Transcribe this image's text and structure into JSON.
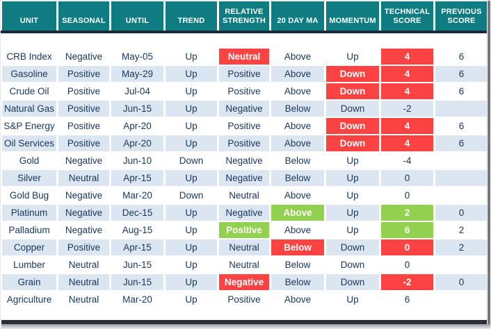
{
  "colors": {
    "header_bg": "#0e7c80",
    "stripe": "#dce6f1",
    "red": "#fb4343",
    "green": "#92d050",
    "text": "#17365d",
    "header_text": "#ffffff",
    "divider": "#1c2b3a",
    "frame_dark": "#2c2e37"
  },
  "table": {
    "columns": [
      "UNIT",
      "SEASONAL",
      "UNTIL",
      "TREND",
      "RELATIVE STRENGTH",
      "20 DAY MA",
      "MOMENTUM",
      "TECHNICAL SCORE",
      "PREVIOUS SCORE"
    ],
    "rows": [
      {
        "cells": [
          {
            "t": "CRB Index"
          },
          {
            "t": "Negative"
          },
          {
            "t": "May-05"
          },
          {
            "t": "Up"
          },
          {
            "t": "Neutral",
            "h": "red"
          },
          {
            "t": "Above"
          },
          {
            "t": "Up"
          },
          {
            "t": "4",
            "h": "red"
          },
          {
            "t": "6"
          }
        ]
      },
      {
        "cells": [
          {
            "t": "Gasoline"
          },
          {
            "t": "Positive"
          },
          {
            "t": "May-29"
          },
          {
            "t": "Up"
          },
          {
            "t": "Positive"
          },
          {
            "t": "Above"
          },
          {
            "t": "Down",
            "h": "red"
          },
          {
            "t": "4",
            "h": "red"
          },
          {
            "t": "6"
          }
        ]
      },
      {
        "cells": [
          {
            "t": "Crude Oil"
          },
          {
            "t": "Positive"
          },
          {
            "t": "Jul-04"
          },
          {
            "t": "Up"
          },
          {
            "t": "Positive"
          },
          {
            "t": "Above"
          },
          {
            "t": "Down",
            "h": "red"
          },
          {
            "t": "4",
            "h": "red"
          },
          {
            "t": "6"
          }
        ]
      },
      {
        "cells": [
          {
            "t": "Natural Gas"
          },
          {
            "t": "Positive"
          },
          {
            "t": "Jun-15"
          },
          {
            "t": "Up"
          },
          {
            "t": "Negative"
          },
          {
            "t": "Below"
          },
          {
            "t": "Down"
          },
          {
            "t": "-2"
          },
          {
            "t": ""
          }
        ]
      },
      {
        "cells": [
          {
            "t": "S&P Energy"
          },
          {
            "t": "Positive"
          },
          {
            "t": "Apr-20"
          },
          {
            "t": "Up"
          },
          {
            "t": "Positive"
          },
          {
            "t": "Above"
          },
          {
            "t": "Down",
            "h": "red"
          },
          {
            "t": "4",
            "h": "red"
          },
          {
            "t": "6"
          }
        ]
      },
      {
        "cells": [
          {
            "t": "Oil Services"
          },
          {
            "t": "Positive"
          },
          {
            "t": "Apr-20"
          },
          {
            "t": "Up"
          },
          {
            "t": "Positive"
          },
          {
            "t": "Above"
          },
          {
            "t": "Down",
            "h": "red"
          },
          {
            "t": "4",
            "h": "red"
          },
          {
            "t": "6"
          }
        ]
      },
      {
        "cells": [
          {
            "t": "Gold"
          },
          {
            "t": "Negative"
          },
          {
            "t": "Jun-10"
          },
          {
            "t": "Down"
          },
          {
            "t": "Negative"
          },
          {
            "t": "Below"
          },
          {
            "t": "Up"
          },
          {
            "t": "-4"
          },
          {
            "t": ""
          }
        ]
      },
      {
        "cells": [
          {
            "t": "Silver"
          },
          {
            "t": "Neutral"
          },
          {
            "t": "Apr-15"
          },
          {
            "t": "Up"
          },
          {
            "t": "Negative"
          },
          {
            "t": "Below"
          },
          {
            "t": "Up"
          },
          {
            "t": "0"
          },
          {
            "t": ""
          }
        ]
      },
      {
        "cells": [
          {
            "t": "Gold Bug"
          },
          {
            "t": "Negative"
          },
          {
            "t": "Mar-20"
          },
          {
            "t": "Down"
          },
          {
            "t": "Neutral"
          },
          {
            "t": "Above"
          },
          {
            "t": "Up"
          },
          {
            "t": "0"
          },
          {
            "t": ""
          }
        ]
      },
      {
        "cells": [
          {
            "t": "Platinum"
          },
          {
            "t": "Negative"
          },
          {
            "t": "Dec-15"
          },
          {
            "t": "Up"
          },
          {
            "t": "Negative"
          },
          {
            "t": "Above",
            "h": "green"
          },
          {
            "t": "Up"
          },
          {
            "t": "2",
            "h": "green"
          },
          {
            "t": "0"
          }
        ]
      },
      {
        "cells": [
          {
            "t": "Palladium"
          },
          {
            "t": "Negative"
          },
          {
            "t": "Aug-15"
          },
          {
            "t": "Up"
          },
          {
            "t": "Positive",
            "h": "green"
          },
          {
            "t": "Above"
          },
          {
            "t": "Up"
          },
          {
            "t": "6",
            "h": "green"
          },
          {
            "t": "2"
          }
        ]
      },
      {
        "cells": [
          {
            "t": "Copper"
          },
          {
            "t": "Positive"
          },
          {
            "t": "Apr-15"
          },
          {
            "t": "Up"
          },
          {
            "t": "Neutral"
          },
          {
            "t": "Below",
            "h": "red"
          },
          {
            "t": "Down"
          },
          {
            "t": "0",
            "h": "red"
          },
          {
            "t": "2"
          }
        ]
      },
      {
        "cells": [
          {
            "t": "Lumber"
          },
          {
            "t": "Neutral"
          },
          {
            "t": "Jun-15"
          },
          {
            "t": "Up"
          },
          {
            "t": "Neutral"
          },
          {
            "t": "Below"
          },
          {
            "t": "Down"
          },
          {
            "t": "0"
          },
          {
            "t": ""
          }
        ]
      },
      {
        "cells": [
          {
            "t": "Grain"
          },
          {
            "t": "Neutral"
          },
          {
            "t": "Jun-15"
          },
          {
            "t": "Up"
          },
          {
            "t": "Negative",
            "h": "red"
          },
          {
            "t": "Below"
          },
          {
            "t": "Down"
          },
          {
            "t": "-2",
            "h": "red"
          },
          {
            "t": "0"
          }
        ]
      },
      {
        "cells": [
          {
            "t": "Agriculture"
          },
          {
            "t": "Neutral"
          },
          {
            "t": "Mar-20"
          },
          {
            "t": "Up"
          },
          {
            "t": "Positive"
          },
          {
            "t": "Above"
          },
          {
            "t": "Up"
          },
          {
            "t": "6"
          },
          {
            "t": ""
          }
        ]
      }
    ]
  }
}
